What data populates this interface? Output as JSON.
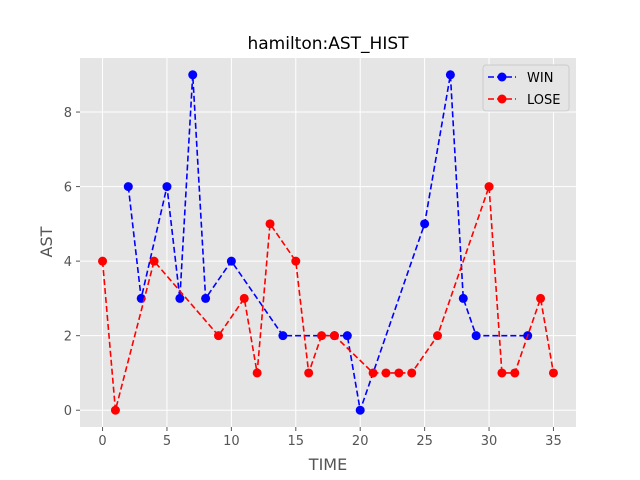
{
  "chart_data": {
    "type": "line",
    "title": "hamilton:AST_HIST",
    "xlabel": "TIME",
    "ylabel": "AST",
    "xlim": [
      -1.75,
      36.75
    ],
    "ylim": [
      -0.45,
      9.45
    ],
    "xticks": [
      0,
      5,
      10,
      15,
      20,
      25,
      30,
      35
    ],
    "yticks": [
      0,
      2,
      4,
      6,
      8
    ],
    "grid": true,
    "legend_position": "top-right",
    "series": [
      {
        "name": "WIN",
        "color": "#0000ff",
        "linestyle": "dashed",
        "marker": "circle",
        "points": [
          [
            2,
            6
          ],
          [
            3,
            3
          ],
          [
            5,
            6
          ],
          [
            6,
            3
          ],
          [
            7,
            9
          ],
          [
            8,
            3
          ],
          [
            10,
            4
          ],
          [
            14,
            2
          ],
          [
            18,
            2
          ],
          [
            19,
            2
          ],
          [
            20,
            0
          ],
          [
            25,
            5
          ],
          [
            27,
            9
          ],
          [
            28,
            3
          ],
          [
            29,
            2
          ],
          [
            33,
            2
          ]
        ]
      },
      {
        "name": "LOSE",
        "color": "#ff0000",
        "linestyle": "dashed",
        "marker": "circle",
        "points": [
          [
            0,
            4
          ],
          [
            1,
            0
          ],
          [
            4,
            4
          ],
          [
            9,
            2
          ],
          [
            11,
            3
          ],
          [
            12,
            1
          ],
          [
            13,
            5
          ],
          [
            15,
            4
          ],
          [
            16,
            1
          ],
          [
            17,
            2
          ],
          [
            18,
            2
          ],
          [
            21,
            1
          ],
          [
            22,
            1
          ],
          [
            23,
            1
          ],
          [
            24,
            1
          ],
          [
            26,
            2
          ],
          [
            30,
            6
          ],
          [
            31,
            1
          ],
          [
            32,
            1
          ],
          [
            34,
            3
          ],
          [
            35,
            1
          ]
        ]
      }
    ]
  }
}
